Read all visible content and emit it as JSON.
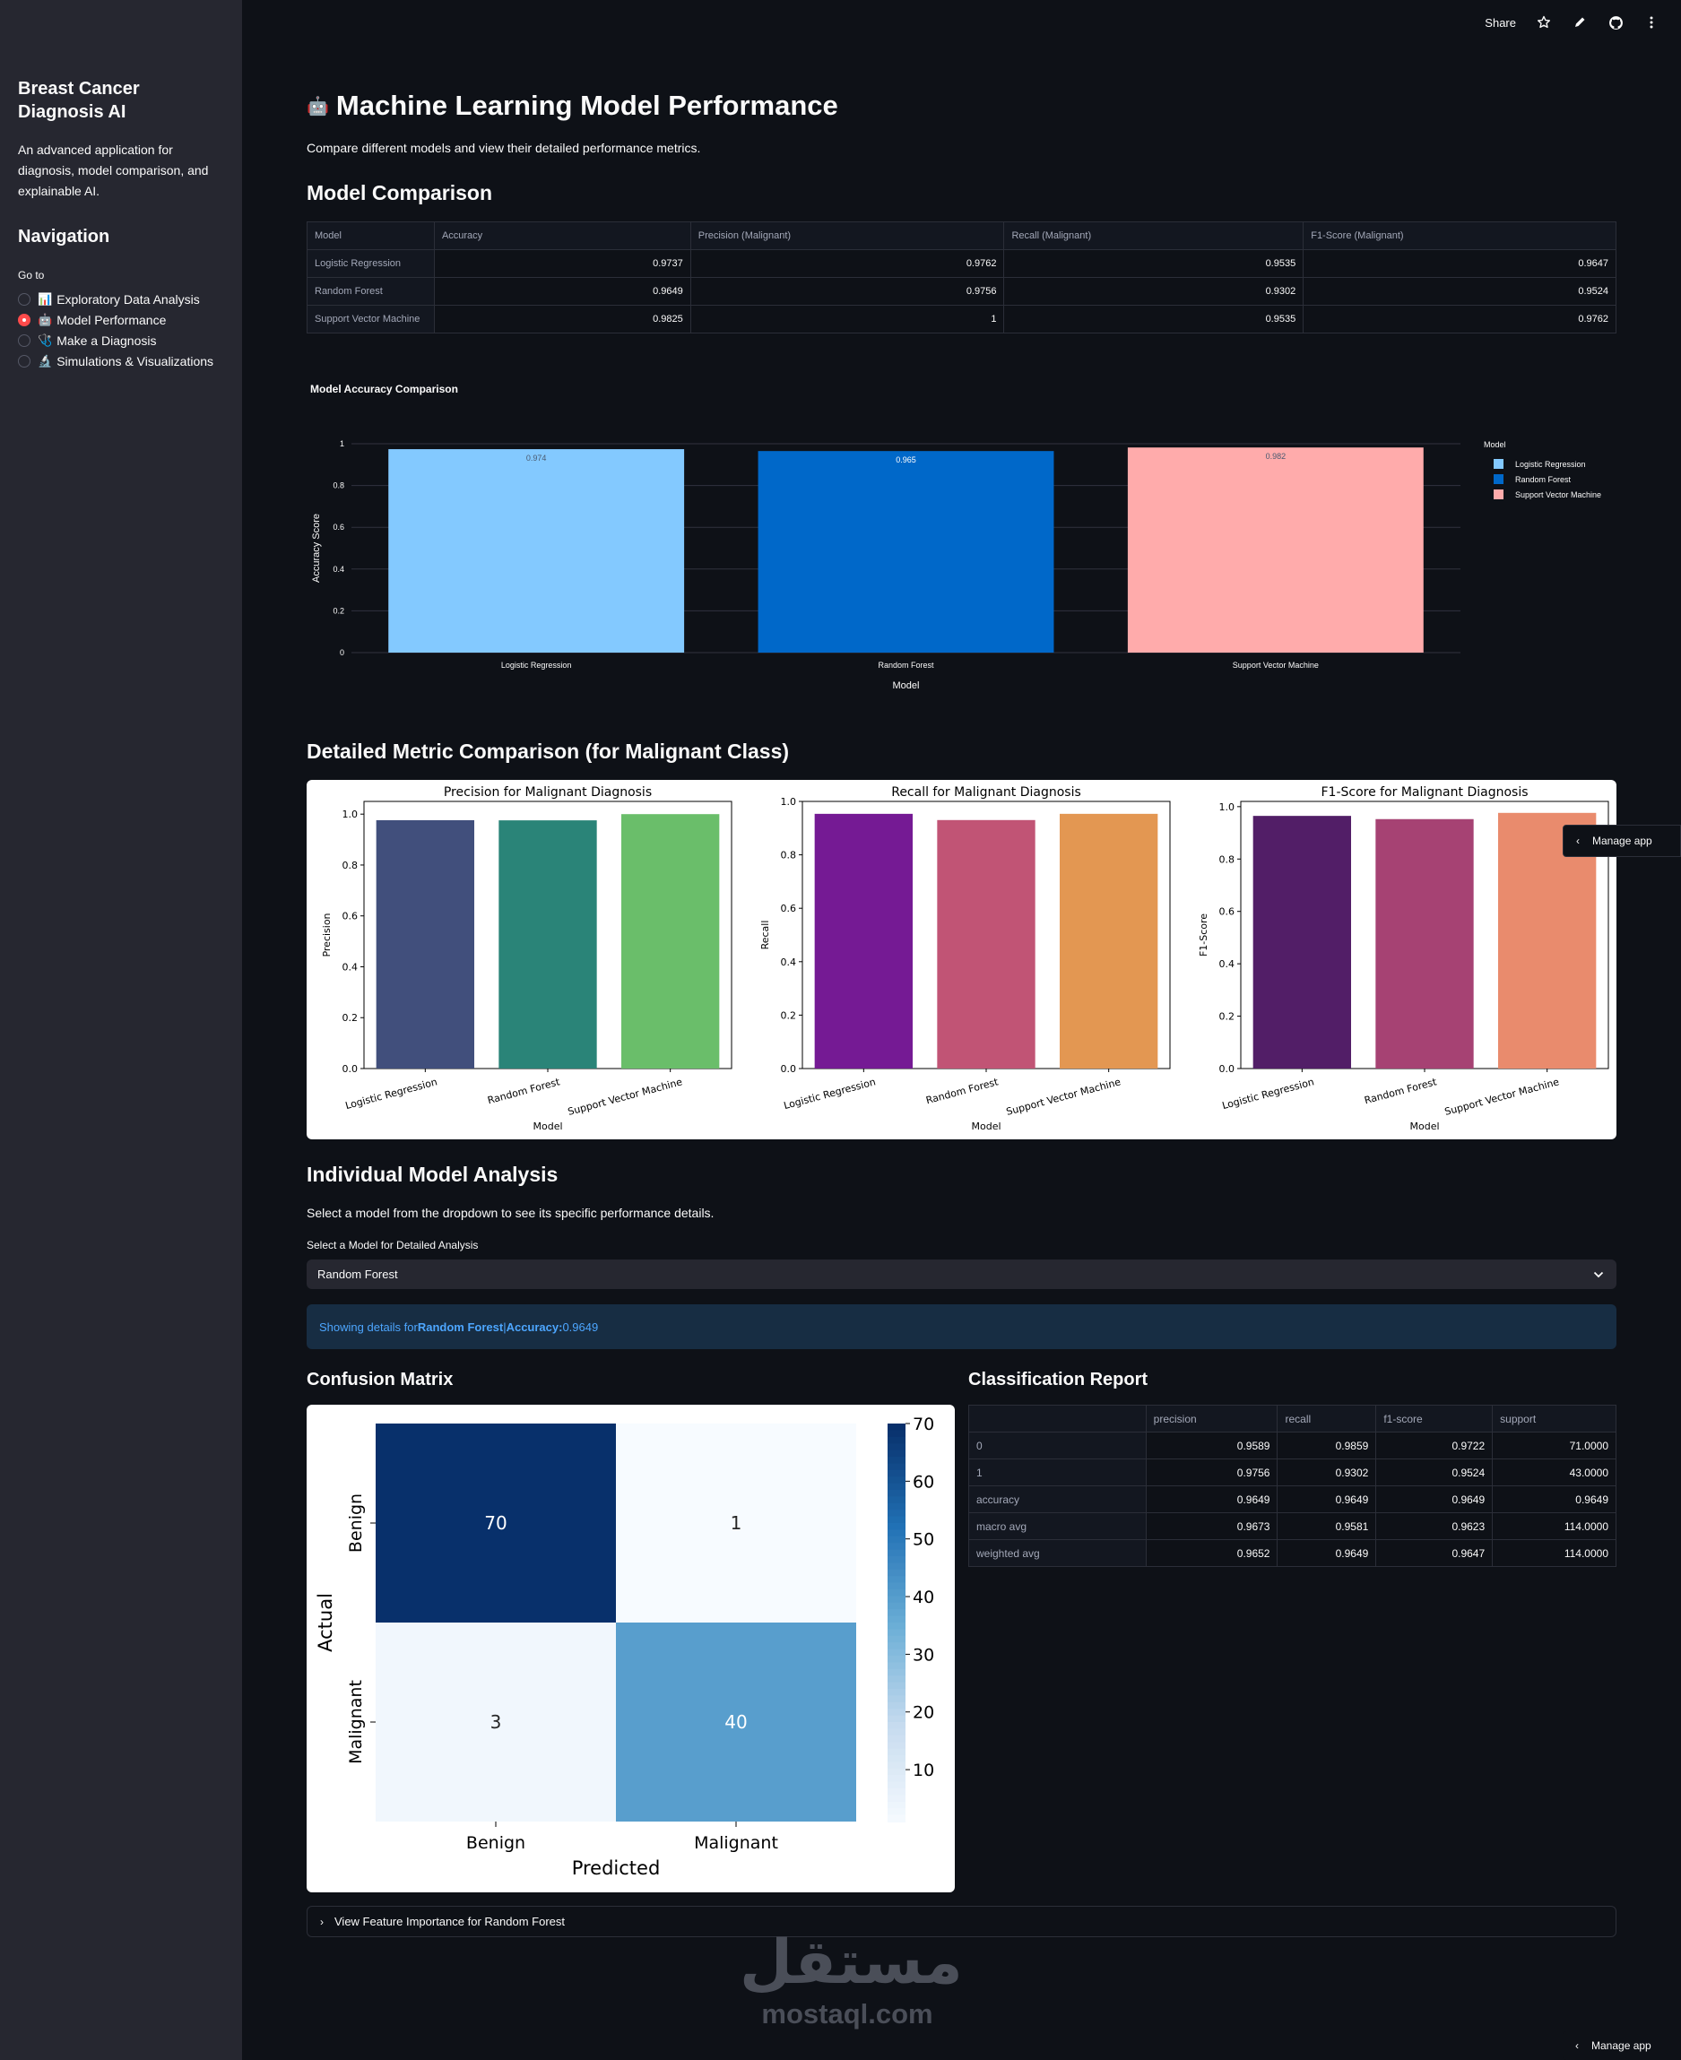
{
  "sidebar": {
    "title": "Breast Cancer Diagnosis AI",
    "description": "An advanced application for diagnosis, model comparison, and explainable AI.",
    "nav_title": "Navigation",
    "goto_label": "Go to",
    "options": [
      {
        "emoji": "📊",
        "label": "Exploratory Data Analysis",
        "selected": false
      },
      {
        "emoji": "🤖",
        "label": "Model Performance",
        "selected": true
      },
      {
        "emoji": "🩺",
        "label": "Make a Diagnosis",
        "selected": false
      },
      {
        "emoji": "🔬",
        "label": "Simulations & Visualizations",
        "selected": false
      }
    ]
  },
  "toolbar": {
    "share_label": "Share"
  },
  "page": {
    "emoji": "🤖",
    "title": "Machine Learning Model Performance",
    "subtitle": "Compare different models and view their detailed performance metrics."
  },
  "model_comparison": {
    "heading": "Model Comparison",
    "columns": [
      "Model",
      "Accuracy",
      "Precision (Malignant)",
      "Recall (Malignant)",
      "F1-Score (Malignant)"
    ],
    "rows": [
      [
        "Logistic Regression",
        "0.9737",
        "0.9762",
        "0.9535",
        "0.9647"
      ],
      [
        "Random Forest",
        "0.9649",
        "0.9756",
        "0.9302",
        "0.9524"
      ],
      [
        "Support Vector Machine",
        "0.9825",
        "1",
        "0.9535",
        "0.9762"
      ]
    ]
  },
  "detailed": {
    "heading": "Detailed Metric Comparison (for Malignant Class)"
  },
  "individual": {
    "heading": "Individual Model Analysis",
    "instruction": "Select a model from the dropdown to see its specific performance details.",
    "select_label": "Select a Model for Detailed Analysis",
    "selected_model": "Random Forest",
    "info_prefix": "Showing details for ",
    "info_model": "Random Forest",
    "info_sep": " | ",
    "info_acc_label": "Accuracy:",
    "info_acc_value": " 0.9649"
  },
  "confusion": {
    "heading": "Confusion Matrix"
  },
  "classification_report": {
    "heading": "Classification Report",
    "columns": [
      "",
      "precision",
      "recall",
      "f1-score",
      "support"
    ],
    "rows": [
      [
        "0",
        "0.9589",
        "0.9859",
        "0.9722",
        "71.0000"
      ],
      [
        "1",
        "0.9756",
        "0.9302",
        "0.9524",
        "43.0000"
      ],
      [
        "accuracy",
        "0.9649",
        "0.9649",
        "0.9649",
        "0.9649"
      ],
      [
        "macro avg",
        "0.9673",
        "0.9581",
        "0.9623",
        "114.0000"
      ],
      [
        "weighted avg",
        "0.9652",
        "0.9649",
        "0.9647",
        "114.0000"
      ]
    ]
  },
  "expander": {
    "label": "View Feature Importance for Random Forest"
  },
  "manage_app": {
    "label": "Manage app"
  },
  "watermark": {
    "arabic": "مستقل",
    "latin": "mostaql.com"
  },
  "chart_data": [
    {
      "type": "bar",
      "title": "Model Accuracy Comparison",
      "xlabel": "Model",
      "ylabel": "Accuracy Score",
      "categories": [
        "Logistic Regression",
        "Random Forest",
        "Support Vector Machine"
      ],
      "values": [
        0.974,
        0.965,
        0.982
      ],
      "value_labels": [
        "0.974",
        "0.965",
        "0.982"
      ],
      "colors": [
        "#83c9ff",
        "#0068c9",
        "#ffabab"
      ],
      "ylim": [
        0,
        1
      ],
      "yticks": [
        "0",
        "0.2",
        "0.4",
        "0.6",
        "0.8",
        "1"
      ],
      "legend_title": "Model",
      "legend": "right"
    },
    {
      "type": "bar",
      "title": "Precision for Malignant Diagnosis",
      "xlabel": "Model",
      "ylabel": "Precision",
      "categories": [
        "Logistic Regression",
        "Random Forest",
        "Support Vector Machine"
      ],
      "values": [
        0.9762,
        0.9756,
        1.0
      ],
      "colors": [
        "#414f7c",
        "#2a8478",
        "#6abe6a"
      ],
      "ylim": [
        0,
        1.05
      ],
      "yticks": [
        "0.0",
        "0.2",
        "0.4",
        "0.6",
        "0.8",
        "1.0"
      ]
    },
    {
      "type": "bar",
      "title": "Recall for Malignant Diagnosis",
      "xlabel": "Model",
      "ylabel": "Recall",
      "categories": [
        "Logistic Regression",
        "Random Forest",
        "Support Vector Machine"
      ],
      "values": [
        0.9535,
        0.9302,
        0.9535
      ],
      "colors": [
        "#751a94",
        "#c15475",
        "#e39752"
      ],
      "ylim": [
        0,
        1.0
      ],
      "yticks": [
        "0.0",
        "0.2",
        "0.4",
        "0.6",
        "0.8",
        "1.0"
      ]
    },
    {
      "type": "bar",
      "title": "F1-Score for Malignant Diagnosis",
      "xlabel": "Model",
      "ylabel": "F1-Score",
      "categories": [
        "Logistic Regression",
        "Random Forest",
        "Support Vector Machine"
      ],
      "values": [
        0.9647,
        0.9524,
        0.9762
      ],
      "colors": [
        "#521e67",
        "#a64273",
        "#e98b6d"
      ],
      "ylim": [
        0,
        1.02
      ],
      "yticks": [
        "0.0",
        "0.2",
        "0.4",
        "0.6",
        "0.8",
        "1.0"
      ]
    },
    {
      "type": "heatmap",
      "title": "Confusion Matrix",
      "xlabel": "Predicted",
      "ylabel": "Actual",
      "x_labels": [
        "Benign",
        "Malignant"
      ],
      "y_labels": [
        "Benign",
        "Malignant"
      ],
      "values": [
        [
          70,
          1
        ],
        [
          3,
          40
        ]
      ],
      "colorbar_ticks": [
        "10",
        "20",
        "30",
        "40",
        "50",
        "60",
        "70"
      ],
      "colorbar_range": [
        1,
        70
      ]
    }
  ]
}
